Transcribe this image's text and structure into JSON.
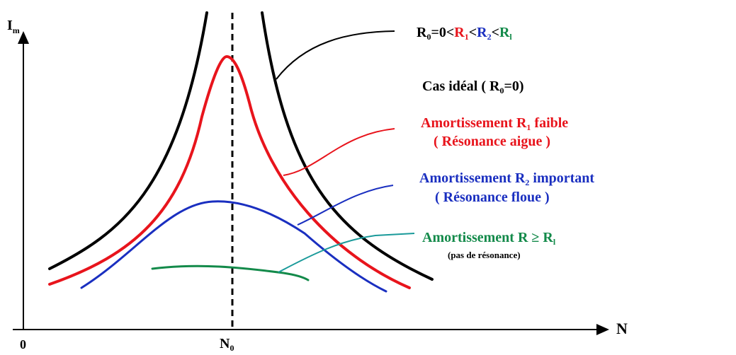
{
  "axes": {
    "y_label": "I",
    "y_sub": "m",
    "x_label": "N",
    "origin_label": "0",
    "resonance_label": "N",
    "resonance_sub": "0"
  },
  "legend": {
    "line1": [
      {
        "text": "R",
        "color": "#000000",
        "sub": "0"
      },
      {
        "text": "=0<",
        "color": "#000000",
        "sub": ""
      },
      {
        "text": "R",
        "color": "#e8141c",
        "sub": "1"
      },
      {
        "text": "<",
        "color": "#000000",
        "sub": ""
      },
      {
        "text": "R",
        "color": "#1a2fc0",
        "sub": "2"
      },
      {
        "text": "<",
        "color": "#000000",
        "sub": ""
      },
      {
        "text": "R",
        "color": "#138a4a",
        "sub": "l"
      }
    ],
    "ideal_text": "Cas idéal ( R",
    "ideal_sub": "0",
    "ideal_end": "=0)",
    "red_line1_a": "Amortissement R",
    "red_line1_sub": "1",
    "red_line1_b": " faible",
    "red_line2": "( Résonance aigue )",
    "blue_line1_a": "Amortissement R",
    "blue_line1_sub": "2",
    "blue_line1_b": " important",
    "blue_line2": "( Résonance floue )",
    "green_line1_a": "Amortissement R ≥ R",
    "green_line1_sub": "l",
    "green_line2": "(pas de résonance)"
  },
  "colors": {
    "ideal": "#000000",
    "weak": "#e8141c",
    "important": "#1a2fc0",
    "none": "#138a4a",
    "axis": "#000000"
  }
}
